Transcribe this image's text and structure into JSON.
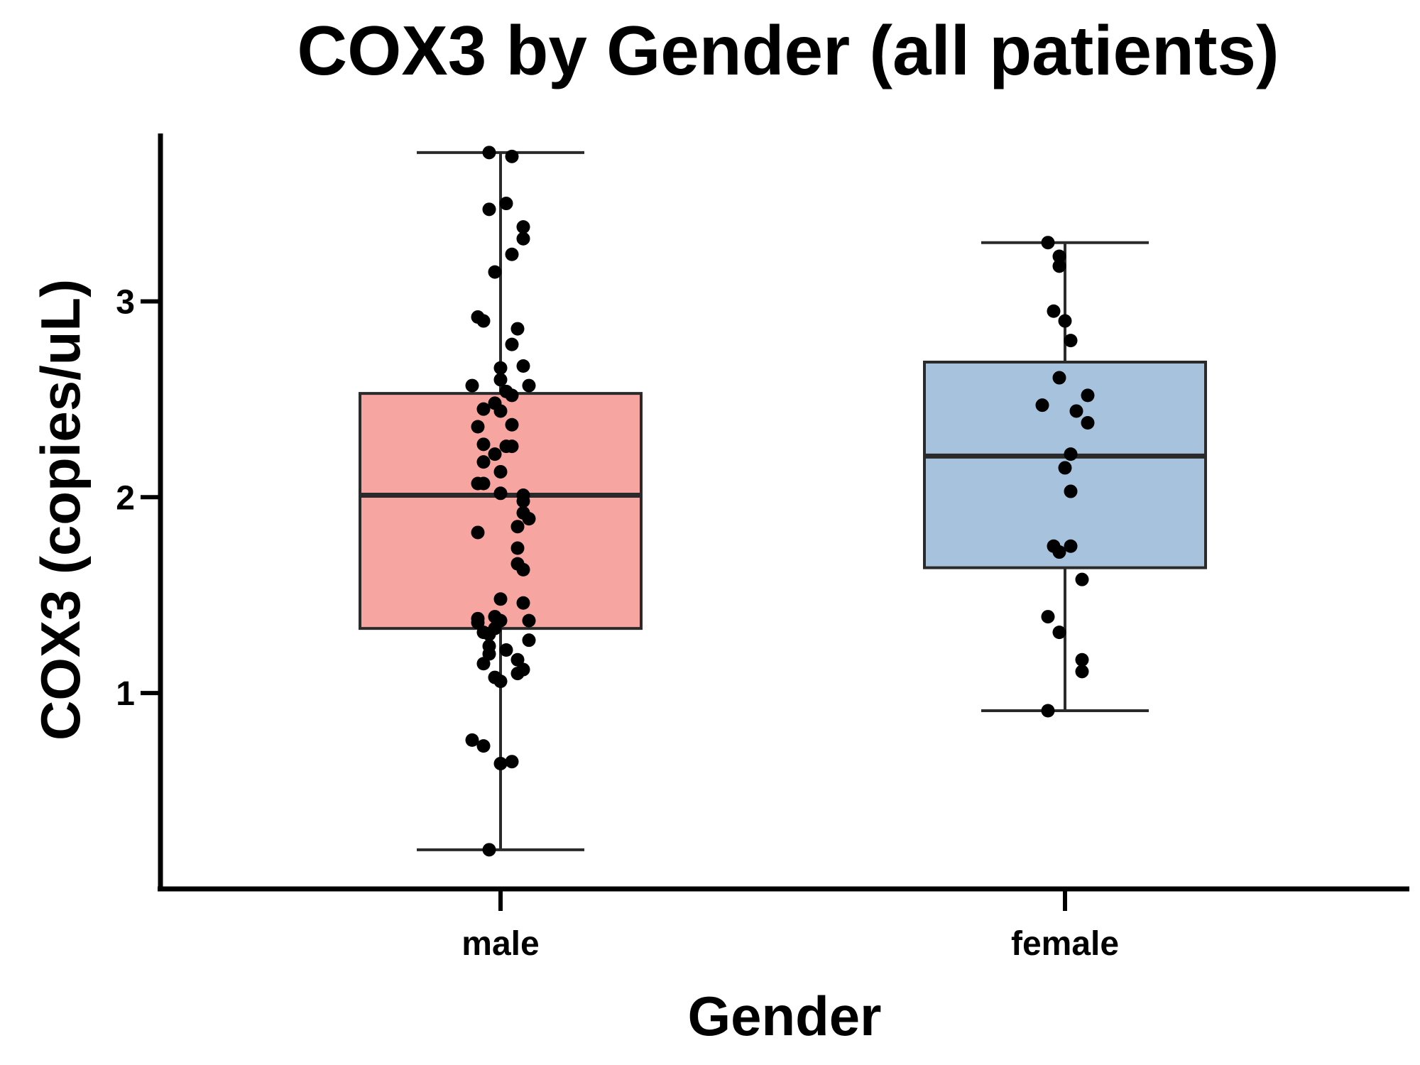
{
  "chart_data": {
    "type": "box",
    "title": "COX3 by Gender (all patients)",
    "xlabel": "Gender",
    "ylabel": "COX3 (copies/uL)",
    "ylim": [
      0.0,
      3.85
    ],
    "yticks": [
      1,
      2,
      3
    ],
    "grid": false,
    "legend": "none",
    "categories": [
      "male",
      "female"
    ],
    "colors": {
      "male": "#f7a5a0",
      "female": "#a7c2dc",
      "box_stroke": "#2a2a2a",
      "points": "#000000"
    },
    "boxes": [
      {
        "name": "male",
        "whisker_low": 0.2,
        "q1": 1.33,
        "median": 2.01,
        "q3": 2.53,
        "whisker_high": 3.76
      },
      {
        "name": "female",
        "whisker_low": 0.91,
        "q1": 1.64,
        "median": 2.21,
        "q3": 2.69,
        "whisker_high": 3.3
      }
    ],
    "points": {
      "male": [
        {
          "x": -0.02,
          "y": 3.76
        },
        {
          "x": 0.02,
          "y": 3.74
        },
        {
          "x": -0.02,
          "y": 3.47
        },
        {
          "x": 0.01,
          "y": 3.5
        },
        {
          "x": 0.04,
          "y": 3.38
        },
        {
          "x": 0.04,
          "y": 3.32
        },
        {
          "x": 0.02,
          "y": 3.24
        },
        {
          "x": -0.01,
          "y": 3.15
        },
        {
          "x": -0.04,
          "y": 2.92
        },
        {
          "x": -0.03,
          "y": 2.9
        },
        {
          "x": 0.03,
          "y": 2.86
        },
        {
          "x": 0.02,
          "y": 2.78
        },
        {
          "x": 0.04,
          "y": 2.67
        },
        {
          "x": 0.0,
          "y": 2.66
        },
        {
          "x": 0.0,
          "y": 2.6
        },
        {
          "x": -0.05,
          "y": 2.57
        },
        {
          "x": 0.05,
          "y": 2.57
        },
        {
          "x": 0.01,
          "y": 2.54
        },
        {
          "x": 0.02,
          "y": 2.52
        },
        {
          "x": -0.01,
          "y": 2.48
        },
        {
          "x": -0.03,
          "y": 2.45
        },
        {
          "x": 0.0,
          "y": 2.44
        },
        {
          "x": 0.02,
          "y": 2.37
        },
        {
          "x": -0.04,
          "y": 2.36
        },
        {
          "x": -0.03,
          "y": 2.27
        },
        {
          "x": 0.01,
          "y": 2.26
        },
        {
          "x": 0.02,
          "y": 2.26
        },
        {
          "x": -0.01,
          "y": 2.22
        },
        {
          "x": -0.03,
          "y": 2.18
        },
        {
          "x": 0.0,
          "y": 2.13
        },
        {
          "x": -0.04,
          "y": 2.07
        },
        {
          "x": -0.03,
          "y": 2.07
        },
        {
          "x": 0.0,
          "y": 2.02
        },
        {
          "x": 0.04,
          "y": 2.01
        },
        {
          "x": 0.04,
          "y": 1.98
        },
        {
          "x": 0.04,
          "y": 1.92
        },
        {
          "x": 0.05,
          "y": 1.89
        },
        {
          "x": 0.03,
          "y": 1.85
        },
        {
          "x": -0.04,
          "y": 1.82
        },
        {
          "x": 0.03,
          "y": 1.74
        },
        {
          "x": 0.03,
          "y": 1.66
        },
        {
          "x": 0.04,
          "y": 1.63
        },
        {
          "x": 0.0,
          "y": 1.48
        },
        {
          "x": 0.04,
          "y": 1.46
        },
        {
          "x": -0.01,
          "y": 1.39
        },
        {
          "x": -0.04,
          "y": 1.38
        },
        {
          "x": -0.04,
          "y": 1.36
        },
        {
          "x": 0.0,
          "y": 1.37
        },
        {
          "x": 0.05,
          "y": 1.37
        },
        {
          "x": -0.01,
          "y": 1.33
        },
        {
          "x": -0.03,
          "y": 1.31
        },
        {
          "x": -0.02,
          "y": 1.3
        },
        {
          "x": 0.05,
          "y": 1.27
        },
        {
          "x": -0.02,
          "y": 1.24
        },
        {
          "x": -0.02,
          "y": 1.2
        },
        {
          "x": 0.01,
          "y": 1.22
        },
        {
          "x": 0.03,
          "y": 1.17
        },
        {
          "x": -0.03,
          "y": 1.15
        },
        {
          "x": 0.04,
          "y": 1.12
        },
        {
          "x": 0.03,
          "y": 1.1
        },
        {
          "x": -0.01,
          "y": 1.08
        },
        {
          "x": 0.0,
          "y": 1.06
        },
        {
          "x": -0.05,
          "y": 0.76
        },
        {
          "x": -0.03,
          "y": 0.73
        },
        {
          "x": 0.0,
          "y": 0.64
        },
        {
          "x": 0.02,
          "y": 0.65
        },
        {
          "x": -0.02,
          "y": 0.2
        }
      ],
      "female": [
        {
          "x": -0.03,
          "y": 3.3
        },
        {
          "x": -0.01,
          "y": 3.23
        },
        {
          "x": -0.01,
          "y": 3.18
        },
        {
          "x": -0.02,
          "y": 2.95
        },
        {
          "x": 0.0,
          "y": 2.9
        },
        {
          "x": 0.01,
          "y": 2.8
        },
        {
          "x": -0.01,
          "y": 2.61
        },
        {
          "x": 0.04,
          "y": 2.52
        },
        {
          "x": -0.04,
          "y": 2.47
        },
        {
          "x": 0.02,
          "y": 2.44
        },
        {
          "x": 0.04,
          "y": 2.38
        },
        {
          "x": 0.01,
          "y": 2.22
        },
        {
          "x": 0.0,
          "y": 2.15
        },
        {
          "x": 0.01,
          "y": 2.03
        },
        {
          "x": -0.02,
          "y": 1.75
        },
        {
          "x": 0.01,
          "y": 1.75
        },
        {
          "x": -0.01,
          "y": 1.72
        },
        {
          "x": 0.03,
          "y": 1.58
        },
        {
          "x": -0.03,
          "y": 1.39
        },
        {
          "x": -0.01,
          "y": 1.31
        },
        {
          "x": 0.03,
          "y": 1.17
        },
        {
          "x": 0.03,
          "y": 1.11
        },
        {
          "x": -0.03,
          "y": 0.91
        }
      ]
    }
  }
}
